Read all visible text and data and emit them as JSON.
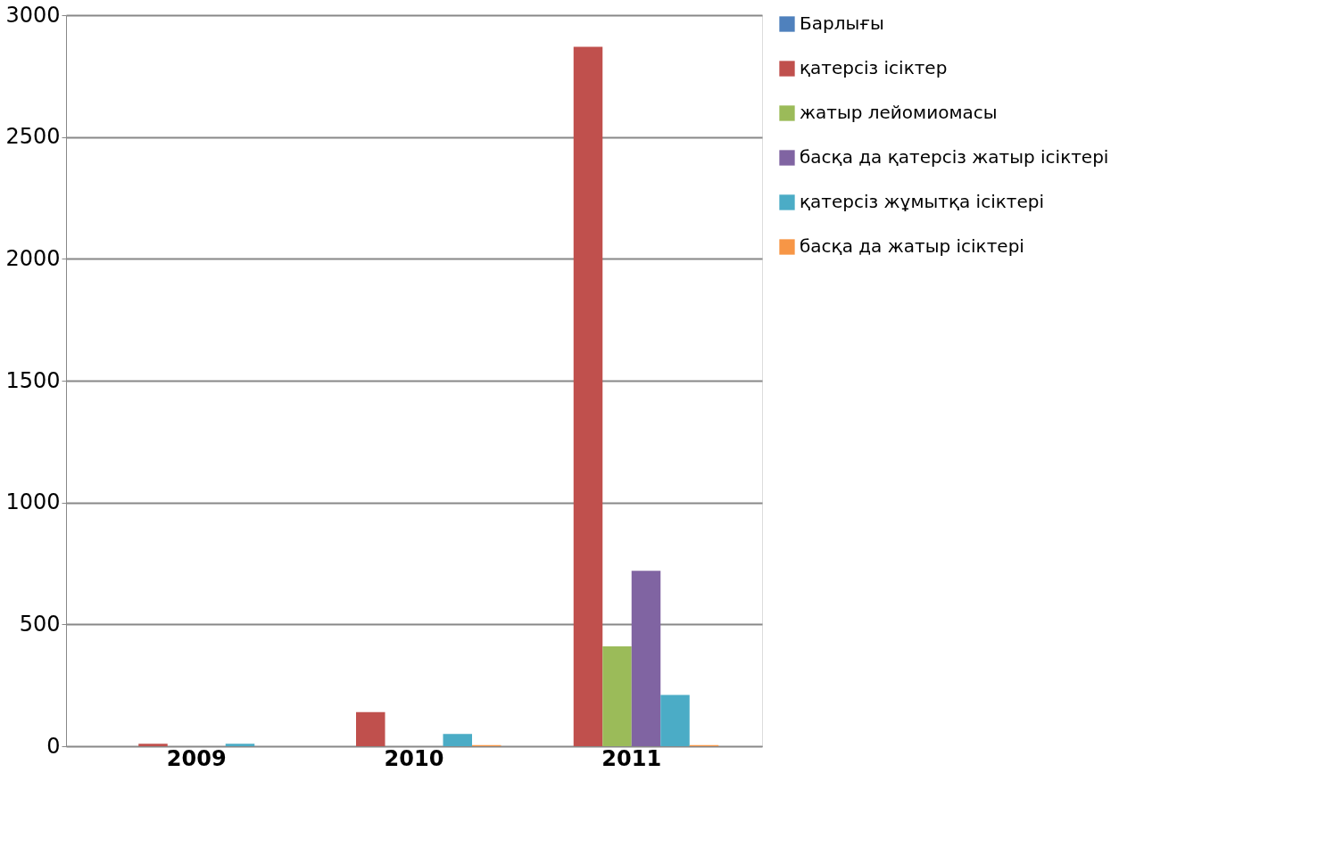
{
  "chart_data": {
    "type": "bar",
    "categories": [
      "2009",
      "2010",
      "2011"
    ],
    "series": [
      {
        "name": "Барлығы",
        "color": "#4f81bd",
        "values": [
          0,
          0,
          0
        ]
      },
      {
        "name": "қатерсіз ісіктер",
        "color": "#c0504d",
        "values": [
          10,
          140,
          2870
        ]
      },
      {
        "name": "жатыр лейомиомасы",
        "color": "#9bbb59",
        "values": [
          0,
          0,
          410
        ]
      },
      {
        "name": "басқа да қатерсіз жатыр ісіктері",
        "color": "#8064a2",
        "values": [
          0,
          0,
          720
        ]
      },
      {
        "name": "қатерсіз жұмытқа ісіктері",
        "color": "#4bacc6",
        "values": [
          10,
          50,
          210
        ]
      },
      {
        "name": "басқа да жатыр ісіктері",
        "color": "#f79646",
        "values": [
          0,
          5,
          5
        ]
      }
    ],
    "ylim": [
      0,
      3000
    ],
    "yticks": [
      0,
      500,
      1000,
      1500,
      2000,
      2500,
      3000
    ],
    "grid": "y",
    "legend": "right"
  }
}
